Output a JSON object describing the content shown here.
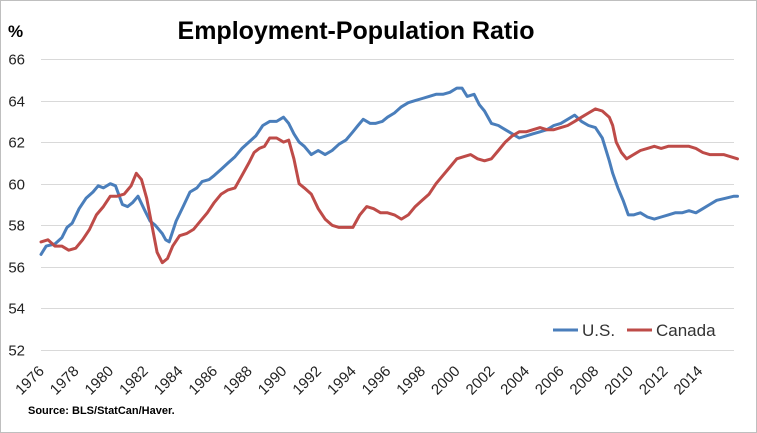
{
  "chart_data": {
    "type": "line",
    "title": "Employment-Population Ratio",
    "ylabel": "%",
    "xlabel": "",
    "source": "Source: BLS/StatCan/Haver.",
    "ylim": [
      52,
      66
    ],
    "yticks": [
      52,
      54,
      56,
      58,
      60,
      62,
      64,
      66
    ],
    "xlim": [
      1976,
      2016
    ],
    "xticks": [
      1976,
      1978,
      1980,
      1982,
      1984,
      1986,
      1988,
      1990,
      1992,
      1994,
      1996,
      1998,
      2000,
      2002,
      2004,
      2006,
      2008,
      2010,
      2012,
      2014
    ],
    "grid": true,
    "legend_position": "bottom-right",
    "series": [
      {
        "name": "U.S.",
        "color": "#4a7ebb",
        "points": [
          [
            1976.0,
            56.6
          ],
          [
            1976.3,
            57.0
          ],
          [
            1976.8,
            57.1
          ],
          [
            1977.2,
            57.4
          ],
          [
            1977.5,
            57.9
          ],
          [
            1977.8,
            58.1
          ],
          [
            1978.2,
            58.8
          ],
          [
            1978.6,
            59.3
          ],
          [
            1979.0,
            59.6
          ],
          [
            1979.3,
            59.9
          ],
          [
            1979.6,
            59.8
          ],
          [
            1980.0,
            60.0
          ],
          [
            1980.3,
            59.9
          ],
          [
            1980.7,
            59.0
          ],
          [
            1981.0,
            58.9
          ],
          [
            1981.3,
            59.1
          ],
          [
            1981.6,
            59.4
          ],
          [
            1982.0,
            58.7
          ],
          [
            1982.3,
            58.2
          ],
          [
            1982.6,
            58.0
          ],
          [
            1983.0,
            57.6
          ],
          [
            1983.2,
            57.3
          ],
          [
            1983.4,
            57.2
          ],
          [
            1983.8,
            58.2
          ],
          [
            1984.2,
            58.9
          ],
          [
            1984.6,
            59.6
          ],
          [
            1985.0,
            59.8
          ],
          [
            1985.3,
            60.1
          ],
          [
            1985.7,
            60.2
          ],
          [
            1986.0,
            60.4
          ],
          [
            1986.4,
            60.7
          ],
          [
            1986.8,
            61.0
          ],
          [
            1987.2,
            61.3
          ],
          [
            1987.6,
            61.7
          ],
          [
            1988.0,
            62.0
          ],
          [
            1988.4,
            62.3
          ],
          [
            1988.8,
            62.8
          ],
          [
            1989.2,
            63.0
          ],
          [
            1989.6,
            63.0
          ],
          [
            1990.0,
            63.2
          ],
          [
            1990.3,
            62.9
          ],
          [
            1990.6,
            62.4
          ],
          [
            1990.9,
            62.0
          ],
          [
            1991.2,
            61.8
          ],
          [
            1991.6,
            61.4
          ],
          [
            1992.0,
            61.6
          ],
          [
            1992.4,
            61.4
          ],
          [
            1992.8,
            61.6
          ],
          [
            1993.2,
            61.9
          ],
          [
            1993.6,
            62.1
          ],
          [
            1994.0,
            62.5
          ],
          [
            1994.3,
            62.8
          ],
          [
            1994.6,
            63.1
          ],
          [
            1995.0,
            62.9
          ],
          [
            1995.3,
            62.9
          ],
          [
            1995.7,
            63.0
          ],
          [
            1996.0,
            63.2
          ],
          [
            1996.4,
            63.4
          ],
          [
            1996.8,
            63.7
          ],
          [
            1997.2,
            63.9
          ],
          [
            1997.6,
            64.0
          ],
          [
            1998.0,
            64.1
          ],
          [
            1998.4,
            64.2
          ],
          [
            1998.8,
            64.3
          ],
          [
            1999.2,
            64.3
          ],
          [
            1999.6,
            64.4
          ],
          [
            2000.0,
            64.6
          ],
          [
            2000.3,
            64.6
          ],
          [
            2000.6,
            64.2
          ],
          [
            2001.0,
            64.3
          ],
          [
            2001.3,
            63.8
          ],
          [
            2001.6,
            63.5
          ],
          [
            2002.0,
            62.9
          ],
          [
            2002.4,
            62.8
          ],
          [
            2002.8,
            62.6
          ],
          [
            2003.2,
            62.4
          ],
          [
            2003.6,
            62.2
          ],
          [
            2004.0,
            62.3
          ],
          [
            2004.4,
            62.4
          ],
          [
            2004.8,
            62.5
          ],
          [
            2005.2,
            62.6
          ],
          [
            2005.6,
            62.8
          ],
          [
            2006.0,
            62.9
          ],
          [
            2006.4,
            63.1
          ],
          [
            2006.8,
            63.3
          ],
          [
            2007.2,
            63.0
          ],
          [
            2007.6,
            62.8
          ],
          [
            2008.0,
            62.7
          ],
          [
            2008.4,
            62.2
          ],
          [
            2008.8,
            61.1
          ],
          [
            2009.0,
            60.5
          ],
          [
            2009.3,
            59.8
          ],
          [
            2009.6,
            59.2
          ],
          [
            2009.9,
            58.5
          ],
          [
            2010.2,
            58.5
          ],
          [
            2010.6,
            58.6
          ],
          [
            2011.0,
            58.4
          ],
          [
            2011.4,
            58.3
          ],
          [
            2011.8,
            58.4
          ],
          [
            2012.2,
            58.5
          ],
          [
            2012.6,
            58.6
          ],
          [
            2013.0,
            58.6
          ],
          [
            2013.4,
            58.7
          ],
          [
            2013.8,
            58.6
          ],
          [
            2014.2,
            58.8
          ],
          [
            2014.6,
            59.0
          ],
          [
            2015.0,
            59.2
          ],
          [
            2015.5,
            59.3
          ],
          [
            2016.0,
            59.4
          ],
          [
            2016.2,
            59.4
          ]
        ]
      },
      {
        "name": "Canada",
        "color": "#be4b48",
        "points": [
          [
            1976.0,
            57.2
          ],
          [
            1976.4,
            57.3
          ],
          [
            1976.8,
            57.0
          ],
          [
            1977.2,
            57.0
          ],
          [
            1977.6,
            56.8
          ],
          [
            1978.0,
            56.9
          ],
          [
            1978.4,
            57.3
          ],
          [
            1978.8,
            57.8
          ],
          [
            1979.2,
            58.5
          ],
          [
            1979.6,
            58.9
          ],
          [
            1980.0,
            59.4
          ],
          [
            1980.4,
            59.4
          ],
          [
            1980.8,
            59.5
          ],
          [
            1981.2,
            59.9
          ],
          [
            1981.5,
            60.5
          ],
          [
            1981.8,
            60.2
          ],
          [
            1982.1,
            59.3
          ],
          [
            1982.4,
            58.0
          ],
          [
            1982.7,
            56.7
          ],
          [
            1983.0,
            56.2
          ],
          [
            1983.3,
            56.4
          ],
          [
            1983.6,
            57.0
          ],
          [
            1984.0,
            57.5
          ],
          [
            1984.4,
            57.6
          ],
          [
            1984.8,
            57.8
          ],
          [
            1985.2,
            58.2
          ],
          [
            1985.6,
            58.6
          ],
          [
            1986.0,
            59.1
          ],
          [
            1986.4,
            59.5
          ],
          [
            1986.8,
            59.7
          ],
          [
            1987.2,
            59.8
          ],
          [
            1987.6,
            60.4
          ],
          [
            1988.0,
            61.0
          ],
          [
            1988.3,
            61.5
          ],
          [
            1988.6,
            61.7
          ],
          [
            1988.9,
            61.8
          ],
          [
            1989.2,
            62.2
          ],
          [
            1989.6,
            62.2
          ],
          [
            1990.0,
            62.0
          ],
          [
            1990.3,
            62.1
          ],
          [
            1990.6,
            61.2
          ],
          [
            1990.9,
            60.0
          ],
          [
            1991.2,
            59.8
          ],
          [
            1991.6,
            59.5
          ],
          [
            1992.0,
            58.8
          ],
          [
            1992.4,
            58.3
          ],
          [
            1992.8,
            58.0
          ],
          [
            1993.2,
            57.9
          ],
          [
            1993.6,
            57.9
          ],
          [
            1994.0,
            57.9
          ],
          [
            1994.4,
            58.5
          ],
          [
            1994.8,
            58.9
          ],
          [
            1995.2,
            58.8
          ],
          [
            1995.6,
            58.6
          ],
          [
            1996.0,
            58.6
          ],
          [
            1996.4,
            58.5
          ],
          [
            1996.8,
            58.3
          ],
          [
            1997.2,
            58.5
          ],
          [
            1997.6,
            58.9
          ],
          [
            1998.0,
            59.2
          ],
          [
            1998.4,
            59.5
          ],
          [
            1998.8,
            60.0
          ],
          [
            1999.2,
            60.4
          ],
          [
            1999.6,
            60.8
          ],
          [
            2000.0,
            61.2
          ],
          [
            2000.4,
            61.3
          ],
          [
            2000.8,
            61.4
          ],
          [
            2001.2,
            61.2
          ],
          [
            2001.6,
            61.1
          ],
          [
            2002.0,
            61.2
          ],
          [
            2002.4,
            61.6
          ],
          [
            2002.8,
            62.0
          ],
          [
            2003.2,
            62.3
          ],
          [
            2003.6,
            62.5
          ],
          [
            2004.0,
            62.5
          ],
          [
            2004.4,
            62.6
          ],
          [
            2004.8,
            62.7
          ],
          [
            2005.2,
            62.6
          ],
          [
            2005.6,
            62.6
          ],
          [
            2006.0,
            62.7
          ],
          [
            2006.4,
            62.8
          ],
          [
            2006.8,
            63.0
          ],
          [
            2007.2,
            63.2
          ],
          [
            2007.6,
            63.4
          ],
          [
            2008.0,
            63.6
          ],
          [
            2008.4,
            63.5
          ],
          [
            2008.8,
            63.2
          ],
          [
            2009.0,
            62.8
          ],
          [
            2009.2,
            62.0
          ],
          [
            2009.5,
            61.5
          ],
          [
            2009.8,
            61.2
          ],
          [
            2010.2,
            61.4
          ],
          [
            2010.6,
            61.6
          ],
          [
            2011.0,
            61.7
          ],
          [
            2011.4,
            61.8
          ],
          [
            2011.8,
            61.7
          ],
          [
            2012.2,
            61.8
          ],
          [
            2012.6,
            61.8
          ],
          [
            2013.0,
            61.8
          ],
          [
            2013.4,
            61.8
          ],
          [
            2013.8,
            61.7
          ],
          [
            2014.2,
            61.5
          ],
          [
            2014.6,
            61.4
          ],
          [
            2015.0,
            61.4
          ],
          [
            2015.4,
            61.4
          ],
          [
            2015.8,
            61.3
          ],
          [
            2016.2,
            61.2
          ]
        ]
      }
    ]
  }
}
